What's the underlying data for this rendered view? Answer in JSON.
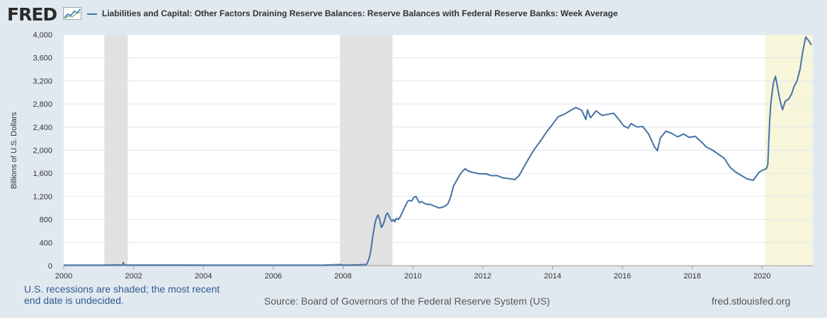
{
  "header": {
    "logo_text": "FRED",
    "legend_label": "Liabilities and Capital: Other Factors Draining Reserve Balances: Reserve Balances with Federal Reserve Banks: Week Average"
  },
  "footer": {
    "recession_note": "U.S. recessions are shaded; the most recent end date is undecided.",
    "source": "Source: Board of Governors of the Federal Reserve System (US)",
    "site": "fred.stlouisfed.org"
  },
  "colors": {
    "background": "#e1e9f0",
    "plot_background": "#ffffff",
    "series": "#4572a7",
    "recession_shade": "#e1e1e1",
    "undecided_recession_shade": "#f7f6db",
    "gridline": "#dfe6ec"
  },
  "chart_data": {
    "type": "line",
    "title": "",
    "xlabel": "",
    "ylabel": "Billions of U.S. Dollars",
    "xlim": [
      "2000-01-01",
      "2021-06-15"
    ],
    "ylim": [
      0,
      4000
    ],
    "grid": true,
    "legend_position": "top",
    "x_ticks": [
      "2000",
      "2002",
      "2004",
      "2006",
      "2008",
      "2010",
      "2012",
      "2014",
      "2016",
      "2018",
      "2020"
    ],
    "y_ticks": [
      {
        "value": 0,
        "label": "0"
      },
      {
        "value": 400,
        "label": "400"
      },
      {
        "value": 800,
        "label": "800"
      },
      {
        "value": 1200,
        "label": "1,200"
      },
      {
        "value": 1600,
        "label": "1,600"
      },
      {
        "value": 2000,
        "label": "2,000"
      },
      {
        "value": 2400,
        "label": "2,400"
      },
      {
        "value": 2800,
        "label": "2,800"
      },
      {
        "value": 3200,
        "label": "3,200"
      },
      {
        "value": 3600,
        "label": "3,600"
      },
      {
        "value": 4000,
        "label": "4,000"
      }
    ],
    "recessions": [
      {
        "start": "2001-03-01",
        "end": "2001-11-01"
      },
      {
        "start": "2007-12-01",
        "end": "2009-06-01"
      },
      {
        "start": "2020-02-01",
        "end": "2021-06-15",
        "undecided": true
      }
    ],
    "series": [
      {
        "name": "Liabilities and Capital: Other Factors Draining Reserve Balances: Reserve Balances with Federal Reserve Banks: Week Average",
        "points": [
          [
            "2000-01-01",
            10
          ],
          [
            "2000-06-01",
            9
          ],
          [
            "2001-01-01",
            10
          ],
          [
            "2001-06-01",
            12
          ],
          [
            "2001-09-08",
            14
          ],
          [
            "2001-09-15",
            55
          ],
          [
            "2001-09-22",
            25
          ],
          [
            "2001-10-01",
            12
          ],
          [
            "2002-06-01",
            11
          ],
          [
            "2003-06-01",
            11
          ],
          [
            "2004-06-01",
            10
          ],
          [
            "2005-06-01",
            10
          ],
          [
            "2006-06-01",
            10
          ],
          [
            "2007-06-01",
            10
          ],
          [
            "2007-12-01",
            20
          ],
          [
            "2008-01-15",
            10
          ],
          [
            "2008-09-01",
            20
          ],
          [
            "2008-09-20",
            80
          ],
          [
            "2008-10-08",
            180
          ],
          [
            "2008-10-22",
            320
          ],
          [
            "2008-11-05",
            480
          ],
          [
            "2008-11-19",
            620
          ],
          [
            "2008-12-03",
            760
          ],
          [
            "2008-12-17",
            830
          ],
          [
            "2009-01-01",
            880
          ],
          [
            "2009-01-20",
            790
          ],
          [
            "2009-02-05",
            660
          ],
          [
            "2009-02-20",
            700
          ],
          [
            "2009-03-10",
            780
          ],
          [
            "2009-03-25",
            880
          ],
          [
            "2009-04-10",
            910
          ],
          [
            "2009-04-25",
            860
          ],
          [
            "2009-05-10",
            810
          ],
          [
            "2009-05-25",
            770
          ],
          [
            "2009-06-10",
            800
          ],
          [
            "2009-06-25",
            760
          ],
          [
            "2009-07-10",
            820
          ],
          [
            "2009-08-01",
            800
          ],
          [
            "2009-08-20",
            840
          ],
          [
            "2009-09-10",
            920
          ],
          [
            "2009-10-01",
            990
          ],
          [
            "2009-10-20",
            1060
          ],
          [
            "2009-11-10",
            1120
          ],
          [
            "2009-12-01",
            1130
          ],
          [
            "2009-12-20",
            1120
          ],
          [
            "2010-01-10",
            1180
          ],
          [
            "2010-02-01",
            1200
          ],
          [
            "2010-02-20",
            1140
          ],
          [
            "2010-03-10",
            1090
          ],
          [
            "2010-04-01",
            1110
          ],
          [
            "2010-05-01",
            1080
          ],
          [
            "2010-06-01",
            1060
          ],
          [
            "2010-07-01",
            1060
          ],
          [
            "2010-08-01",
            1040
          ],
          [
            "2010-09-01",
            1020
          ],
          [
            "2010-10-01",
            1000
          ],
          [
            "2010-11-01",
            1010
          ],
          [
            "2010-12-01",
            1030
          ],
          [
            "2011-01-01",
            1070
          ],
          [
            "2011-02-01",
            1200
          ],
          [
            "2011-03-01",
            1380
          ],
          [
            "2011-04-01",
            1470
          ],
          [
            "2011-05-01",
            1560
          ],
          [
            "2011-06-01",
            1630
          ],
          [
            "2011-07-01",
            1680
          ],
          [
            "2011-08-01",
            1640
          ],
          [
            "2011-10-01",
            1610
          ],
          [
            "2011-12-01",
            1590
          ],
          [
            "2012-02-01",
            1590
          ],
          [
            "2012-04-01",
            1560
          ],
          [
            "2012-06-01",
            1560
          ],
          [
            "2012-08-01",
            1520
          ],
          [
            "2012-10-01",
            1510
          ],
          [
            "2012-12-01",
            1490
          ],
          [
            "2013-01-15",
            1560
          ],
          [
            "2013-03-01",
            1690
          ],
          [
            "2013-05-01",
            1870
          ],
          [
            "2013-07-01",
            2030
          ],
          [
            "2013-09-01",
            2170
          ],
          [
            "2013-11-01",
            2320
          ],
          [
            "2014-01-01",
            2450
          ],
          [
            "2014-03-01",
            2580
          ],
          [
            "2014-05-01",
            2620
          ],
          [
            "2014-07-01",
            2680
          ],
          [
            "2014-09-01",
            2740
          ],
          [
            "2014-11-01",
            2690
          ],
          [
            "2014-12-15",
            2530
          ],
          [
            "2015-01-01",
            2700
          ],
          [
            "2015-02-01",
            2560
          ],
          [
            "2015-04-01",
            2680
          ],
          [
            "2015-06-01",
            2600
          ],
          [
            "2015-08-01",
            2620
          ],
          [
            "2015-10-01",
            2640
          ],
          [
            "2015-12-01",
            2520
          ],
          [
            "2016-01-15",
            2420
          ],
          [
            "2016-03-01",
            2380
          ],
          [
            "2016-04-01",
            2460
          ],
          [
            "2016-06-01",
            2400
          ],
          [
            "2016-08-01",
            2410
          ],
          [
            "2016-10-01",
            2280
          ],
          [
            "2016-12-01",
            2060
          ],
          [
            "2017-01-01",
            1990
          ],
          [
            "2017-02-01",
            2210
          ],
          [
            "2017-04-01",
            2330
          ],
          [
            "2017-06-01",
            2290
          ],
          [
            "2017-08-01",
            2230
          ],
          [
            "2017-10-01",
            2280
          ],
          [
            "2017-12-01",
            2220
          ],
          [
            "2018-02-01",
            2240
          ],
          [
            "2018-04-01",
            2150
          ],
          [
            "2018-06-01",
            2050
          ],
          [
            "2018-08-01",
            2000
          ],
          [
            "2018-10-01",
            1930
          ],
          [
            "2018-12-01",
            1860
          ],
          [
            "2019-02-01",
            1700
          ],
          [
            "2019-04-01",
            1620
          ],
          [
            "2019-06-01",
            1560
          ],
          [
            "2019-08-01",
            1500
          ],
          [
            "2019-10-01",
            1480
          ],
          [
            "2019-12-01",
            1620
          ],
          [
            "2020-01-15",
            1660
          ],
          [
            "2020-02-15",
            1680
          ],
          [
            "2020-03-01",
            1750
          ],
          [
            "2020-03-10",
            2100
          ],
          [
            "2020-03-20",
            2500
          ],
          [
            "2020-04-01",
            2800
          ],
          [
            "2020-04-15",
            3000
          ],
          [
            "2020-05-01",
            3180
          ],
          [
            "2020-05-20",
            3280
          ],
          [
            "2020-06-10",
            3100
          ],
          [
            "2020-07-01",
            2900
          ],
          [
            "2020-08-01",
            2700
          ],
          [
            "2020-09-01",
            2850
          ],
          [
            "2020-10-01",
            2880
          ],
          [
            "2020-11-01",
            2960
          ],
          [
            "2020-12-01",
            3100
          ],
          [
            "2021-01-01",
            3200
          ],
          [
            "2021-02-01",
            3400
          ],
          [
            "2021-03-01",
            3700
          ],
          [
            "2021-04-01",
            3960
          ],
          [
            "2021-05-01",
            3900
          ],
          [
            "2021-06-01",
            3820
          ]
        ]
      }
    ]
  }
}
